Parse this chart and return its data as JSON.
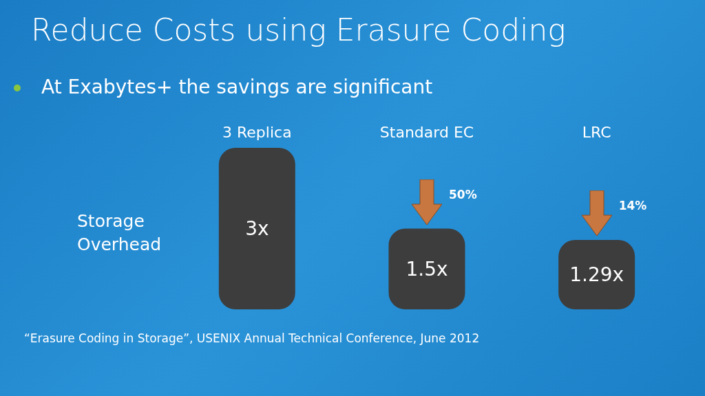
{
  "chart_data": {
    "type": "bar",
    "title": "Reduce Costs using Erasure Coding",
    "subtitle": "At Exabytes+ the savings are significant",
    "ylabel": "Storage Overhead",
    "categories": [
      "3 Replica",
      "Standard EC",
      "LRC"
    ],
    "values": [
      3,
      1.5,
      1.29
    ],
    "value_labels": [
      "3x",
      "1.5x",
      "1.29x"
    ],
    "color": "#3d3d3d",
    "annotations": [
      "50%",
      "14%",
      "“Erasure Coding in Storage”, USENIX Annual Technical Conference, June 2012"
    ]
  }
}
